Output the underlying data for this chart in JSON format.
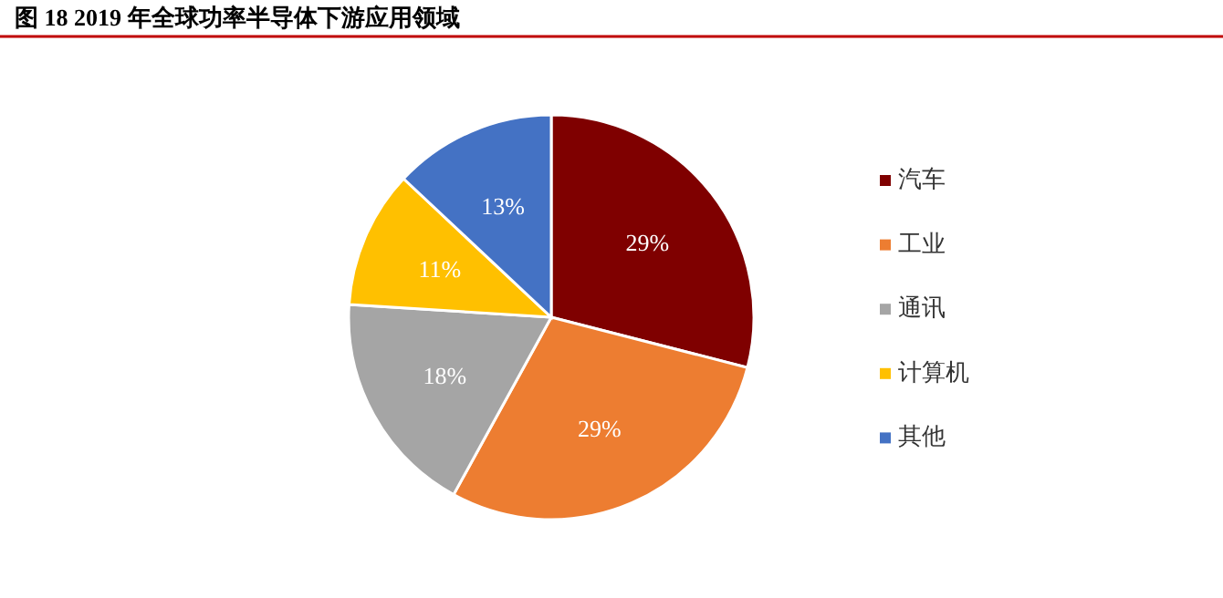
{
  "chart_data": {
    "type": "pie",
    "title": "图 18 2019 年全球功率半导体下游应用领域",
    "categories": [
      "汽车",
      "工业",
      "通讯",
      "计算机",
      "其他"
    ],
    "values": [
      29,
      29,
      18,
      11,
      13
    ],
    "colors": [
      "#7f0000",
      "#ed7d31",
      "#a5a5a5",
      "#ffc000",
      "#4472c4"
    ],
    "value_labels": [
      "29%",
      "29%",
      "18%",
      "11%",
      "13%"
    ],
    "legend": "right"
  }
}
